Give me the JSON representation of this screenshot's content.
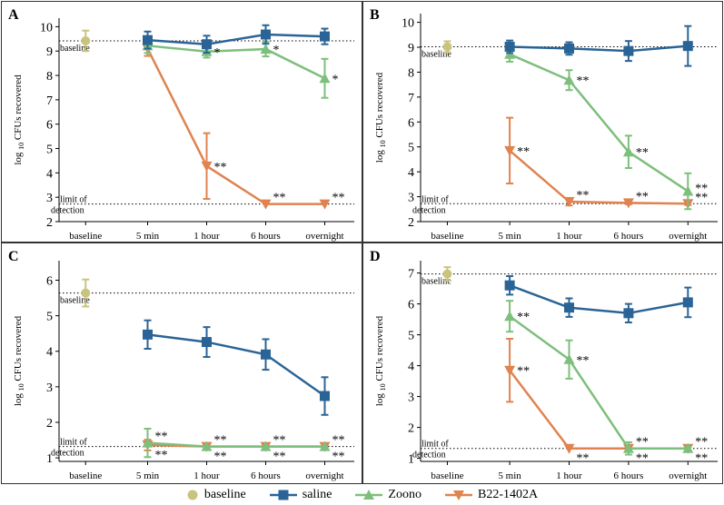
{
  "colors": {
    "baseline": "#c8c47d",
    "saline": "#2a6496",
    "Zoono": "#7dbf7d",
    "B22-1402A": "#e0834f"
  },
  "legend": {
    "items": [
      {
        "key": "baseline",
        "label": "baseline",
        "marker": "circle"
      },
      {
        "key": "saline",
        "label": "saline",
        "marker": "square"
      },
      {
        "key": "Zoono",
        "label": "Zoono",
        "marker": "triangle-up"
      },
      {
        "key": "B22-1402A",
        "label": "B22-1402A",
        "marker": "triangle-down"
      }
    ]
  },
  "chart_data": [
    {
      "type": "line",
      "panel": "A",
      "categories": [
        "baseline",
        "5 min",
        "1 hour",
        "6 hours",
        "overnight"
      ],
      "ylabel_prefix": "log",
      "ylabel_sub": "10",
      "ylabel_rest": "CFUs recovered",
      "yticks": [
        2,
        3,
        4,
        5,
        6,
        7,
        8,
        9,
        10
      ],
      "ylim": [
        2,
        10.35
      ],
      "baseline_line": 9.42,
      "baseline_label": "baseline",
      "lod_line": 2.72,
      "lod_label": [
        "limit of",
        "detection"
      ],
      "baseline_point": {
        "value": 9.42,
        "err": 0.42
      },
      "series": [
        {
          "name": "saline",
          "values": [
            null,
            9.45,
            9.28,
            9.68,
            9.6
          ],
          "err": [
            null,
            0.35,
            0.35,
            0.38,
            0.32
          ],
          "sig": [
            null,
            "",
            "",
            "",
            ""
          ]
        },
        {
          "name": "Zoono",
          "values": [
            null,
            9.22,
            8.98,
            9.08,
            7.88
          ],
          "err": [
            null,
            0.3,
            0.25,
            0.3,
            0.8
          ],
          "sig": [
            null,
            "",
            "*",
            "*",
            "*"
          ]
        },
        {
          "name": "B22-1402A",
          "values": [
            null,
            9.1,
            4.28,
            2.72,
            2.72
          ],
          "err": [
            null,
            0.3,
            1.35,
            0,
            0
          ],
          "sig": [
            null,
            "",
            "**",
            "**",
            "**"
          ]
        }
      ]
    },
    {
      "type": "line",
      "panel": "B",
      "categories": [
        "baseline",
        "5 min",
        "1 hour",
        "6 hours",
        "overnight"
      ],
      "ylabel_prefix": "log",
      "ylabel_sub": "10",
      "ylabel_rest": "CFUs recovered",
      "yticks": [
        2,
        3,
        4,
        5,
        6,
        7,
        8,
        9,
        10
      ],
      "ylim": [
        2,
        10.35
      ],
      "baseline_line": 9.02,
      "baseline_label": "baseline",
      "lod_line": 2.72,
      "lod_label": [
        "limit of",
        "detection"
      ],
      "baseline_point": {
        "value": 9.02,
        "err": 0.22
      },
      "series": [
        {
          "name": "saline",
          "values": [
            null,
            9.02,
            8.95,
            8.85,
            9.05
          ],
          "err": [
            null,
            0.25,
            0.25,
            0.4,
            0.8
          ],
          "sig": [
            null,
            "",
            "",
            "",
            ""
          ]
        },
        {
          "name": "Zoono",
          "values": [
            null,
            8.72,
            7.68,
            4.8,
            3.22
          ],
          "err": [
            null,
            0.3,
            0.4,
            0.65,
            0.72
          ],
          "sig": [
            null,
            "",
            "**",
            "**",
            "**"
          ]
        },
        {
          "name": "B22-1402A",
          "values": [
            null,
            4.85,
            2.8,
            2.75,
            2.72
          ],
          "err": [
            null,
            1.32,
            0.15,
            0.05,
            0.05
          ],
          "sig": [
            null,
            "**",
            "**",
            "**",
            "**"
          ]
        }
      ]
    },
    {
      "type": "line",
      "panel": "C",
      "categories": [
        "baseline",
        "5 min",
        "1 hour",
        "6 hours",
        "overnight"
      ],
      "ylabel_prefix": "log",
      "ylabel_sub": "10",
      "ylabel_rest": "CFUs recovered",
      "yticks": [
        1,
        2,
        3,
        4,
        5,
        6
      ],
      "ylim": [
        0.9,
        6.55
      ],
      "baseline_line": 5.64,
      "baseline_label": "baseline",
      "lod_line": 1.32,
      "lod_label": [
        "limit of",
        "detection"
      ],
      "baseline_point": {
        "value": 5.64,
        "err": 0.38
      },
      "series": [
        {
          "name": "saline",
          "values": [
            null,
            4.47,
            4.26,
            3.91,
            2.74
          ],
          "err": [
            null,
            0.4,
            0.42,
            0.43,
            0.53
          ],
          "sig": [
            null,
            "",
            "",
            "",
            ""
          ]
        },
        {
          "name": "Zoono",
          "values": [
            null,
            1.42,
            1.32,
            1.32,
            1.32
          ],
          "err": [
            null,
            0.4,
            0,
            0,
            0
          ],
          "sig": [
            null,
            "**",
            "**",
            "**",
            "**"
          ]
        },
        {
          "name": "B22-1402A",
          "values": [
            null,
            1.36,
            1.32,
            1.32,
            1.32
          ],
          "err": [
            null,
            0.15,
            0,
            0,
            0
          ],
          "sig": [
            null,
            "**",
            "**",
            "**",
            "**"
          ]
        }
      ]
    },
    {
      "type": "line",
      "panel": "D",
      "categories": [
        "baseline",
        "5 min",
        "1 hour",
        "6 hours",
        "overnight"
      ],
      "ylabel_prefix": "log",
      "ylabel_sub": "10",
      "ylabel_rest": "CFUs recovered",
      "yticks": [
        1,
        2,
        3,
        4,
        5,
        6,
        7
      ],
      "ylim": [
        0.9,
        7.4
      ],
      "baseline_line": 6.97,
      "baseline_label": "baseline",
      "lod_line": 1.32,
      "lod_label": [
        "limit of",
        "detection"
      ],
      "baseline_point": {
        "value": 6.97,
        "err": 0.22
      },
      "series": [
        {
          "name": "saline",
          "values": [
            null,
            6.6,
            5.88,
            5.7,
            6.05
          ],
          "err": [
            null,
            0.3,
            0.3,
            0.3,
            0.48
          ],
          "sig": [
            null,
            "",
            "",
            "",
            ""
          ]
        },
        {
          "name": "Zoono",
          "values": [
            null,
            5.6,
            4.2,
            1.32,
            1.32
          ],
          "err": [
            null,
            0.5,
            0.62,
            0.2,
            0.05
          ],
          "sig": [
            null,
            "**",
            "**",
            "**",
            "**"
          ]
        },
        {
          "name": "B22-1402A",
          "values": [
            null,
            3.85,
            1.32,
            1.32,
            1.32
          ],
          "err": [
            null,
            1.02,
            0,
            0,
            0
          ],
          "sig": [
            null,
            "**",
            "**",
            "**",
            "**"
          ]
        }
      ]
    }
  ]
}
